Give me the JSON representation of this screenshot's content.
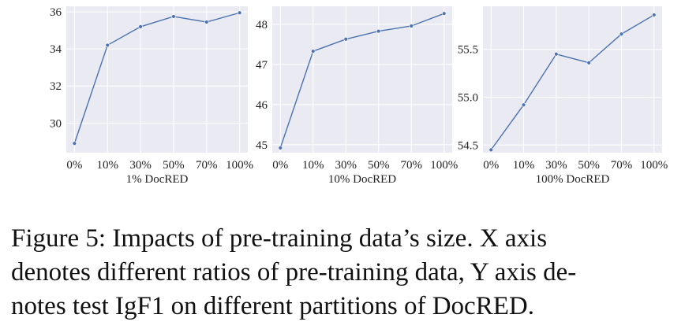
{
  "chart_data": [
    {
      "type": "line",
      "categories": [
        "0%",
        "10%",
        "30%",
        "50%",
        "70%",
        "100%"
      ],
      "values": [
        28.9,
        34.2,
        35.2,
        35.75,
        35.45,
        35.95
      ],
      "xlabel": "1% DocRED",
      "ylabel": "",
      "ylim": [
        28.4,
        36.3
      ],
      "yticks": [
        30,
        32,
        34,
        36
      ],
      "ytick_labels": [
        "30",
        "32",
        "34",
        "36"
      ],
      "grid": true,
      "color": "#4c72b0"
    },
    {
      "type": "line",
      "categories": [
        "0%",
        "10%",
        "30%",
        "50%",
        "70%",
        "100%"
      ],
      "values": [
        44.92,
        47.33,
        47.63,
        47.83,
        47.96,
        48.27
      ],
      "xlabel": "10% DocRED",
      "ylabel": "",
      "ylim": [
        44.8,
        48.45
      ],
      "yticks": [
        45,
        46,
        47,
        48
      ],
      "ytick_labels": [
        "45",
        "46",
        "47",
        "48"
      ],
      "grid": true,
      "color": "#4c72b0"
    },
    {
      "type": "line",
      "categories": [
        "0%",
        "10%",
        "30%",
        "50%",
        "70%",
        "100%"
      ],
      "values": [
        54.45,
        54.92,
        55.45,
        55.36,
        55.66,
        55.86
      ],
      "xlabel": "100% DocRED",
      "ylabel": "",
      "ylim": [
        54.42,
        55.95
      ],
      "yticks": [
        54.5,
        55.0,
        55.5
      ],
      "ytick_labels": [
        "54.5",
        "55.0",
        "55.5"
      ],
      "grid": true,
      "color": "#4c72b0"
    }
  ],
  "caption": {
    "line1": "Figure 5:  Impacts of pre-training data’s size.  X axis",
    "line2": "denotes different ratios of pre-training data, Y axis de-",
    "line3": "notes test IgF1 on different partitions of DocRED."
  }
}
